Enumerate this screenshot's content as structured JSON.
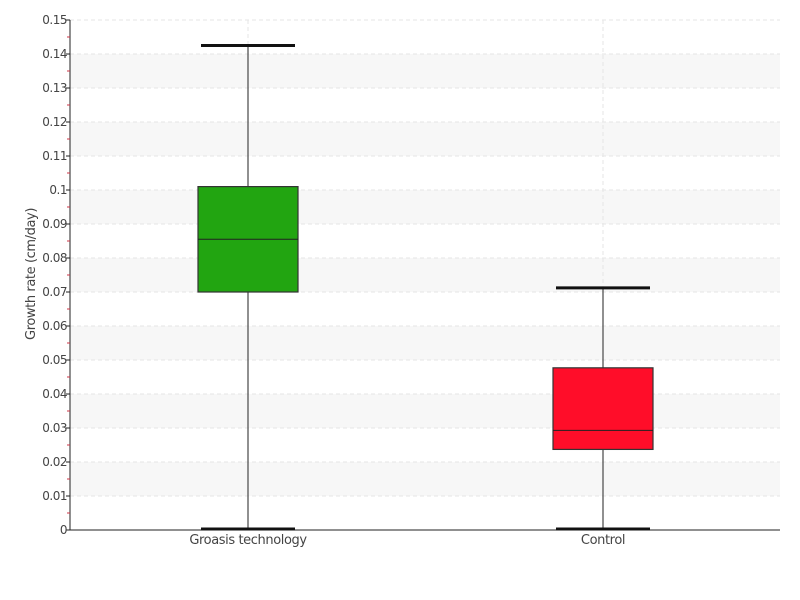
{
  "chart_data": {
    "type": "boxplot",
    "title": "",
    "xlabel": "",
    "ylabel": "Growth rate (cm/day)",
    "ylim": [
      0,
      0.15
    ],
    "yticks": [
      "0",
      "0.01",
      "0.02",
      "0.03",
      "0.04",
      "0.05",
      "0.06",
      "0.07",
      "0.08",
      "0.09",
      "0.1",
      "0.11",
      "0.12",
      "0.13",
      "0.14",
      "0.15"
    ],
    "grid": true,
    "alternating_bands": true,
    "categories": [
      "Groasis technology",
      "Control"
    ],
    "boxes": [
      {
        "category": "Groasis technology",
        "min": 0,
        "q1": 0.07,
        "median": 0.0855,
        "q3": 0.101,
        "max": 0.1425,
        "color": "#22a511"
      },
      {
        "category": "Control",
        "min": 0,
        "q1": 0.0237,
        "median": 0.0293,
        "q3": 0.0477,
        "max": 0.0712,
        "color": "#ff0d29"
      }
    ]
  }
}
